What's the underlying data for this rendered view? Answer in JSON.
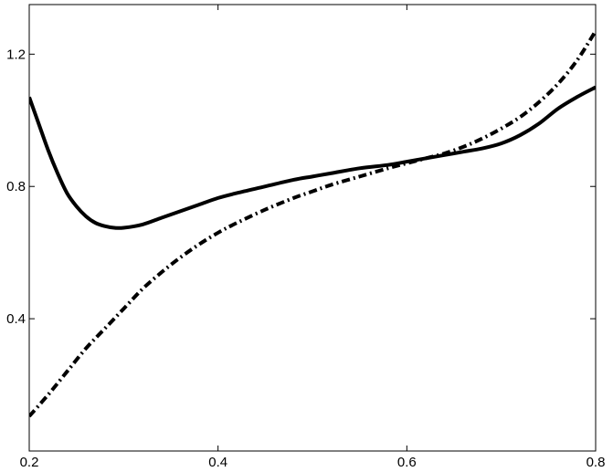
{
  "chart_data": {
    "type": "line",
    "title": "",
    "xlabel": "",
    "ylabel": "",
    "xlim": [
      0.2,
      0.8
    ],
    "ylim": [
      0.0,
      1.35
    ],
    "xticks": [
      0.2,
      0.4,
      0.6,
      0.8
    ],
    "xtick_labels": [
      "0.2",
      "0.4",
      "0.6",
      "0.8"
    ],
    "yticks": [
      0.4,
      0.8,
      1.2
    ],
    "ytick_labels": [
      "0.4",
      "0.8",
      "1.2"
    ],
    "grid": false,
    "legend": "none",
    "series": [
      {
        "style": "solid",
        "color": "#000000",
        "x": [
          0.2,
          0.21,
          0.22,
          0.23,
          0.24,
          0.25,
          0.26,
          0.27,
          0.28,
          0.29,
          0.3,
          0.32,
          0.34,
          0.36,
          0.38,
          0.4,
          0.42,
          0.45,
          0.48,
          0.5,
          0.52,
          0.55,
          0.58,
          0.6,
          0.62,
          0.64,
          0.66,
          0.68,
          0.7,
          0.72,
          0.74,
          0.76,
          0.78,
          0.8
        ],
        "y": [
          1.07,
          0.99,
          0.91,
          0.84,
          0.78,
          0.74,
          0.71,
          0.69,
          0.68,
          0.675,
          0.675,
          0.685,
          0.705,
          0.725,
          0.745,
          0.765,
          0.78,
          0.8,
          0.82,
          0.83,
          0.84,
          0.855,
          0.865,
          0.875,
          0.885,
          0.895,
          0.905,
          0.915,
          0.93,
          0.955,
          0.99,
          1.035,
          1.07,
          1.1
        ]
      },
      {
        "style": "dashdot",
        "color": "#000000",
        "x": [
          0.2,
          0.22,
          0.24,
          0.26,
          0.28,
          0.3,
          0.32,
          0.34,
          0.36,
          0.38,
          0.4,
          0.42,
          0.45,
          0.48,
          0.5,
          0.52,
          0.55,
          0.58,
          0.6,
          0.62,
          0.64,
          0.66,
          0.68,
          0.7,
          0.72,
          0.74,
          0.76,
          0.78,
          0.8
        ],
        "y": [
          0.105,
          0.17,
          0.24,
          0.31,
          0.37,
          0.43,
          0.49,
          0.54,
          0.585,
          0.625,
          0.66,
          0.69,
          0.73,
          0.765,
          0.785,
          0.805,
          0.83,
          0.855,
          0.87,
          0.885,
          0.9,
          0.92,
          0.945,
          0.975,
          1.01,
          1.055,
          1.11,
          1.18,
          1.27
        ]
      }
    ]
  }
}
